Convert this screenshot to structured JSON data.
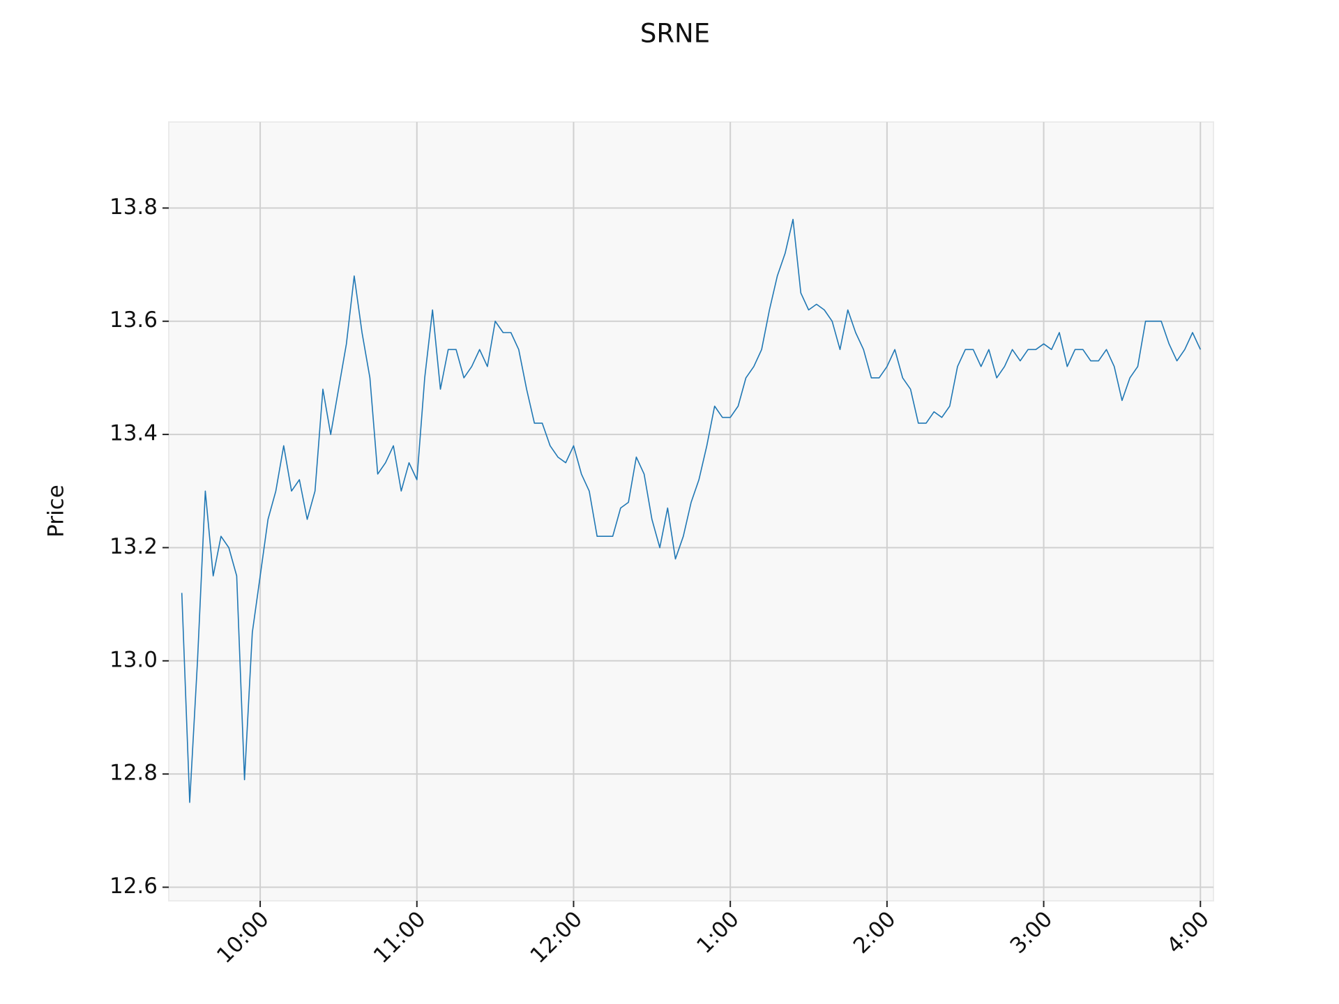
{
  "chart_data": {
    "type": "line",
    "title": "SRNE",
    "y_label": "Price",
    "x": [
      570,
      573,
      576,
      579,
      582,
      585,
      588,
      591,
      594,
      597,
      600,
      603,
      606,
      609,
      612,
      615,
      618,
      621,
      624,
      627,
      630,
      633,
      636,
      639,
      642,
      645,
      648,
      651,
      654,
      657,
      660,
      663,
      666,
      669,
      672,
      675,
      678,
      681,
      684,
      687,
      690,
      693,
      696,
      699,
      702,
      705,
      708,
      711,
      714,
      717,
      720,
      723,
      726,
      729,
      732,
      735,
      738,
      741,
      744,
      747,
      750,
      753,
      756,
      759,
      762,
      765,
      768,
      771,
      774,
      777,
      780,
      783,
      786,
      789,
      792,
      795,
      798,
      801,
      804,
      807,
      810,
      813,
      816,
      819,
      822,
      825,
      828,
      831,
      834,
      837,
      840,
      843,
      846,
      849,
      852,
      855,
      858,
      861,
      864,
      867,
      870,
      873,
      876,
      879,
      882,
      885,
      888,
      891,
      894,
      897,
      900,
      903,
      906,
      909,
      912,
      915,
      918,
      921,
      924,
      927,
      930,
      933,
      936,
      939,
      942,
      945,
      948,
      951,
      954,
      957,
      960
    ],
    "series": [
      {
        "name": "SRNE",
        "color": "#1f77b4",
        "values": [
          13.12,
          12.75,
          13.0,
          13.3,
          13.15,
          13.22,
          13.2,
          13.15,
          12.79,
          13.05,
          13.15,
          13.25,
          13.3,
          13.38,
          13.3,
          13.32,
          13.25,
          13.3,
          13.48,
          13.4,
          13.48,
          13.56,
          13.68,
          13.58,
          13.5,
          13.33,
          13.35,
          13.38,
          13.3,
          13.35,
          13.32,
          13.5,
          13.62,
          13.48,
          13.55,
          13.55,
          13.5,
          13.52,
          13.55,
          13.52,
          13.6,
          13.58,
          13.58,
          13.55,
          13.48,
          13.42,
          13.42,
          13.38,
          13.36,
          13.35,
          13.38,
          13.33,
          13.3,
          13.22,
          13.22,
          13.22,
          13.27,
          13.28,
          13.36,
          13.33,
          13.25,
          13.2,
          13.27,
          13.18,
          13.22,
          13.28,
          13.32,
          13.38,
          13.45,
          13.43,
          13.43,
          13.45,
          13.5,
          13.52,
          13.55,
          13.62,
          13.68,
          13.72,
          13.78,
          13.65,
          13.62,
          13.63,
          13.62,
          13.6,
          13.55,
          13.62,
          13.58,
          13.55,
          13.5,
          13.5,
          13.52,
          13.55,
          13.5,
          13.48,
          13.42,
          13.42,
          13.44,
          13.43,
          13.45,
          13.52,
          13.55,
          13.55,
          13.52,
          13.55,
          13.5,
          13.52,
          13.55,
          13.53,
          13.55,
          13.55,
          13.56,
          13.55,
          13.58,
          13.52,
          13.55,
          13.55,
          13.53,
          13.53,
          13.55,
          13.52,
          13.46,
          13.5,
          13.52,
          13.6,
          13.6,
          13.6,
          13.56,
          13.53,
          13.55,
          13.58,
          13.55
        ]
      }
    ],
    "xlim": [
      565,
      965
    ],
    "xticks": [
      {
        "value": 600,
        "label": "10:00"
      },
      {
        "value": 660,
        "label": "11:00"
      },
      {
        "value": 720,
        "label": "12:00"
      },
      {
        "value": 780,
        "label": "1:00"
      },
      {
        "value": 840,
        "label": "2:00"
      },
      {
        "value": 900,
        "label": "3:00"
      },
      {
        "value": 960,
        "label": "4:00"
      }
    ],
    "ylim": [
      12.576,
      13.952
    ],
    "yticks": [
      {
        "value": 12.6,
        "label": "12.6"
      },
      {
        "value": 12.8,
        "label": "12.8"
      },
      {
        "value": 13.0,
        "label": "13.0"
      },
      {
        "value": 13.2,
        "label": "13.2"
      },
      {
        "value": 13.4,
        "label": "13.4"
      },
      {
        "value": 13.6,
        "label": "13.6"
      },
      {
        "value": 13.8,
        "label": "13.8"
      }
    ],
    "grid": true
  }
}
